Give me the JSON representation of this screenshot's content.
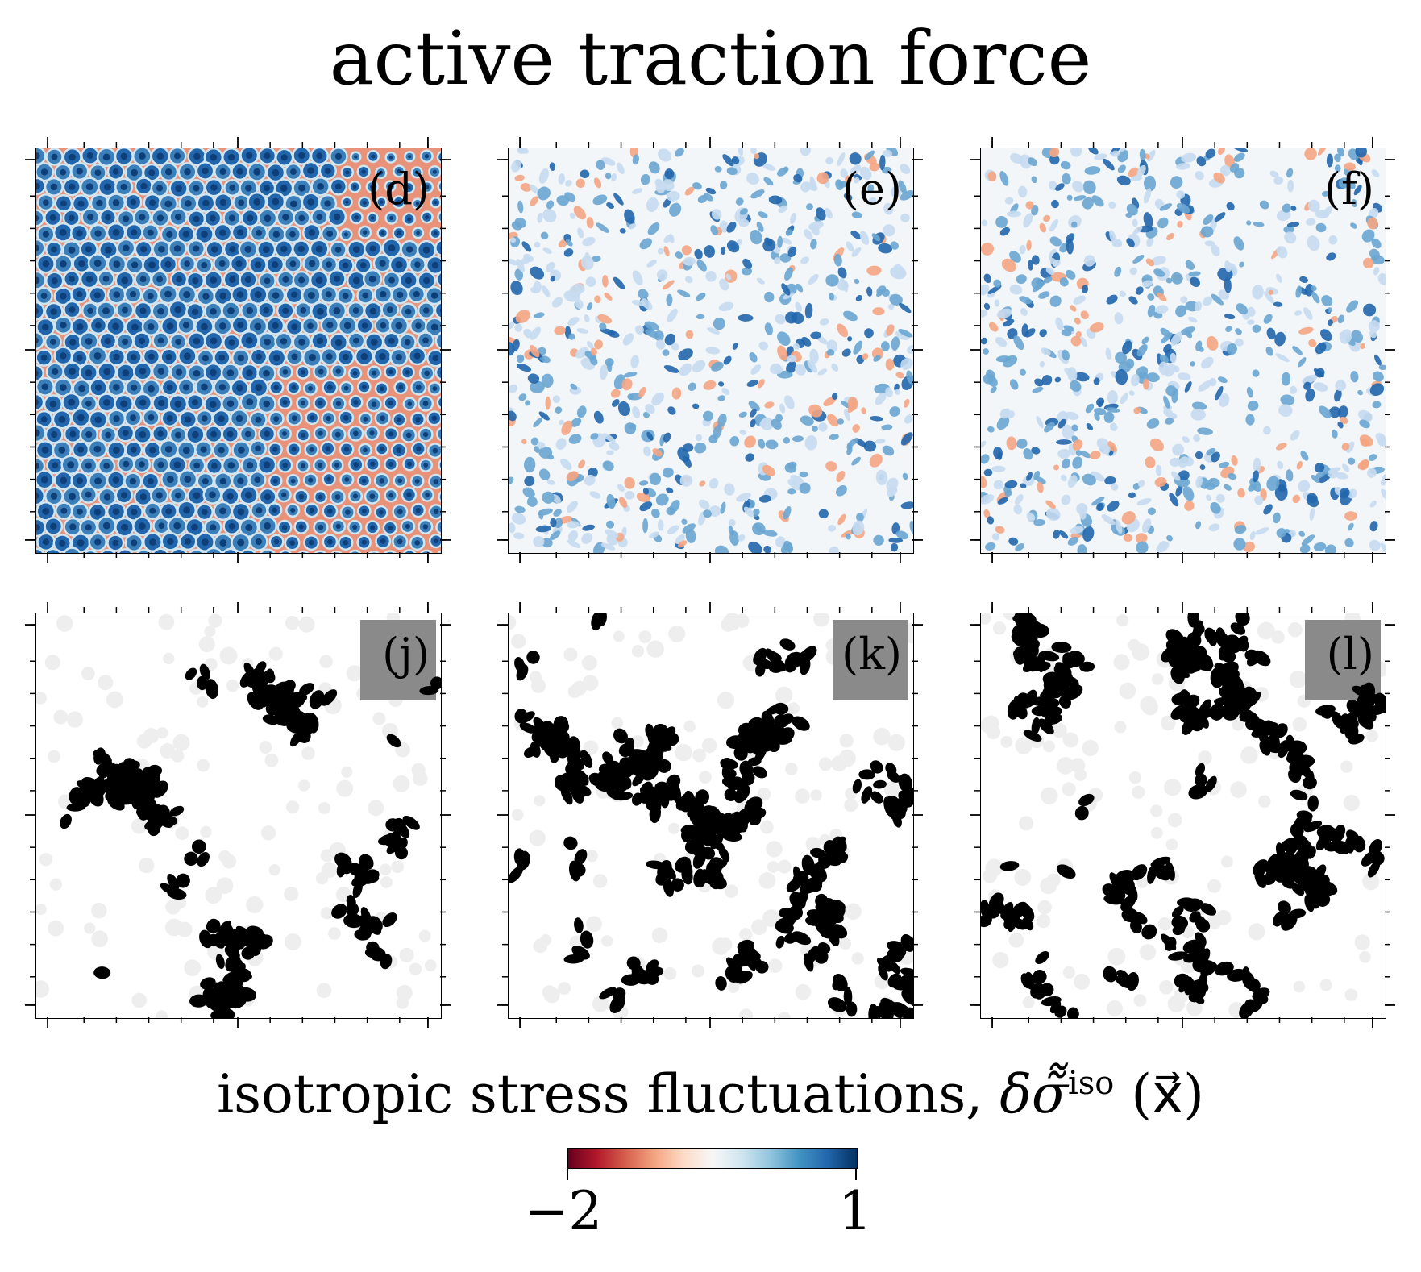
{
  "figure": {
    "title": "active traction force",
    "panels": [
      {
        "label": "(d)",
        "kind": "stress",
        "pattern": "crystal"
      },
      {
        "label": "(e)",
        "kind": "stress",
        "pattern": "disordered"
      },
      {
        "label": "(f)",
        "kind": "stress",
        "pattern": "disordered"
      },
      {
        "label": "(j)",
        "kind": "cluster"
      },
      {
        "label": "(k)",
        "kind": "cluster"
      },
      {
        "label": "(l)",
        "kind": "cluster"
      }
    ],
    "colorbar": {
      "label": "isotropic stress fluctuations,",
      "symbol": "δσ̃̃",
      "superscript": "iso",
      "argument": "(x⃗)",
      "min_label": "−2",
      "max_label": "1",
      "min": -2,
      "max": 1,
      "colormap": "RdBu",
      "colors": {
        "low": "#67001f",
        "mid": "#f7f7f7",
        "high": "#053061"
      }
    }
  }
}
